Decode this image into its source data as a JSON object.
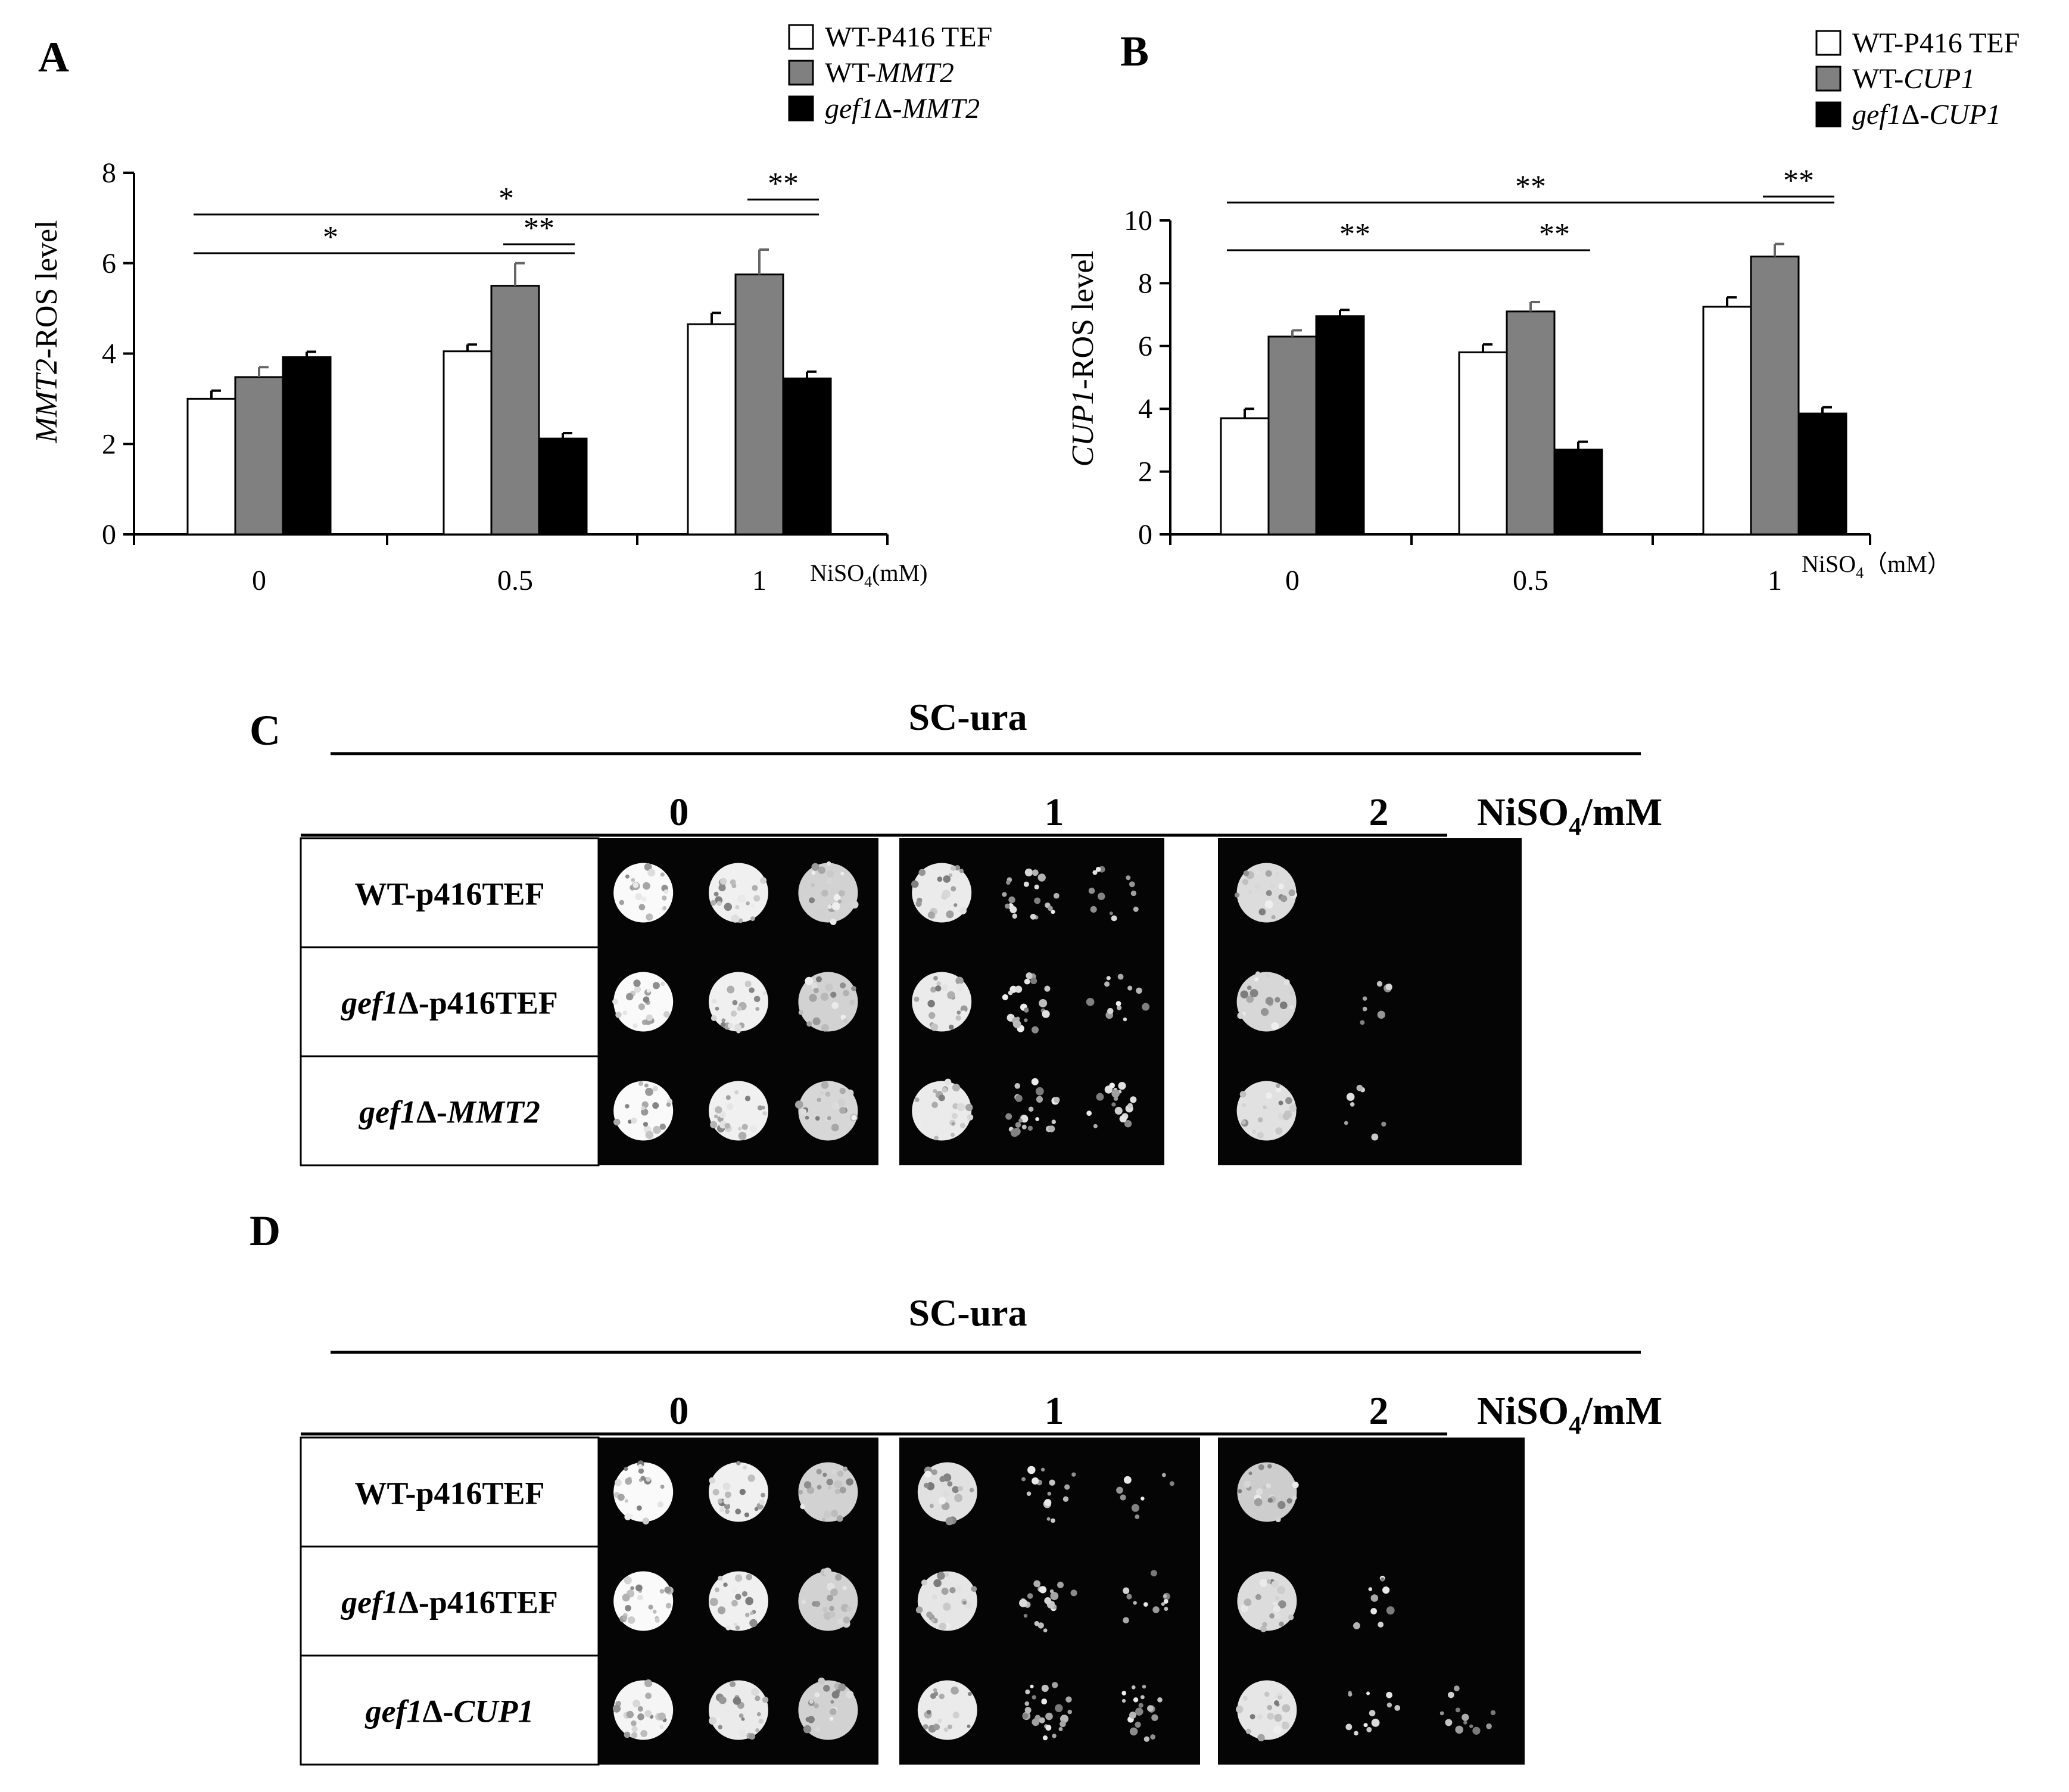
{
  "chart_data": [
    {
      "type": "bar",
      "panel": "A",
      "title": "",
      "ylabel": "MMT2-ROS level",
      "xlabel": "NiSO4(mM)",
      "categories": [
        "0",
        "0.5",
        "1"
      ],
      "ylim": [
        0,
        8
      ],
      "yticks": [
        0,
        2,
        4,
        6,
        8
      ],
      "legend_placement": "top-right",
      "grid": false,
      "series": [
        {
          "name": "WT-P416 TEF",
          "color": "#ffffff",
          "values": [
            3.0,
            4.05,
            4.65
          ],
          "errors": [
            0.18,
            0.15,
            0.25
          ]
        },
        {
          "name": "WT-MMT2",
          "color": "#808080",
          "values": [
            3.48,
            5.5,
            5.75
          ],
          "errors": [
            0.22,
            0.5,
            0.55
          ]
        },
        {
          "name": "gef1Δ-MMT2",
          "color": "#000000",
          "values": [
            3.92,
            2.12,
            3.45
          ],
          "errors": [
            0.12,
            0.12,
            0.15
          ]
        }
      ],
      "significance": [
        {
          "from": "0 / gef1Δ-MMT2",
          "to": "1 / gef1Δ-MMT2",
          "label": "*"
        },
        {
          "from": "0 / gef1Δ-MMT2",
          "to": "0.5 / gef1Δ-MMT2",
          "label": "*"
        },
        {
          "from": "0.5 / WT-MMT2",
          "to": "0.5 / gef1Δ-MMT2",
          "label": "**"
        },
        {
          "from": "1 / WT-MMT2",
          "to": "1 / gef1Δ-MMT2",
          "label": "**"
        }
      ]
    },
    {
      "type": "bar",
      "panel": "B",
      "title": "",
      "ylabel": "CUP1-ROS level",
      "xlabel": "NiSO4（mM）",
      "categories": [
        "0",
        "0.5",
        "1"
      ],
      "ylim": [
        0,
        10
      ],
      "yticks": [
        0,
        2,
        4,
        6,
        8,
        10
      ],
      "legend_placement": "top-right",
      "grid": false,
      "series": [
        {
          "name": "WT-P416 TEF",
          "color": "#ffffff",
          "values": [
            3.7,
            5.8,
            7.25
          ],
          "errors": [
            0.3,
            0.25,
            0.3
          ]
        },
        {
          "name": "WT-CUP1",
          "color": "#808080",
          "values": [
            6.3,
            7.1,
            8.85
          ],
          "errors": [
            0.2,
            0.3,
            0.4
          ]
        },
        {
          "name": "gef1Δ-CUP1",
          "color": "#000000",
          "values": [
            6.95,
            2.7,
            3.85
          ],
          "errors": [
            0.2,
            0.25,
            0.2
          ]
        }
      ],
      "significance": [
        {
          "from": "0 / gef1Δ-CUP1",
          "to": "1 / gef1Δ-CUP1",
          "label": "**"
        },
        {
          "from": "0 / gef1Δ-CUP1",
          "to": "0.5 / gef1Δ-CUP1",
          "label": "**"
        },
        {
          "from": "0.5 / WT-CUP1",
          "to": "0.5 / gef1Δ-CUP1",
          "label": "**"
        },
        {
          "from": "1 / WT-CUP1",
          "to": "1 / gef1Δ-CUP1",
          "label": "**"
        }
      ]
    }
  ],
  "spot_assays": [
    {
      "panel": "C",
      "medium": "SC-ura",
      "concentrations": [
        "0",
        "1",
        "2"
      ],
      "unit": "NiSO4/mM",
      "strains": [
        "WT-p416TEF",
        "gef1Δ-p416TEF",
        "gef1Δ-MMT2"
      ],
      "growth": [
        [
          1.0,
          0.9,
          0.6
        ],
        [
          0.85,
          0.25,
          0.1
        ],
        [
          0.7,
          0.0,
          0.0
        ]
      ],
      "growth_rows": [
        [
          [
            1.0,
            0.9,
            0.6
          ],
          [
            0.85,
            0.25,
            0.1
          ],
          [
            0.7,
            0.0,
            0.0
          ]
        ],
        [
          [
            1.0,
            0.9,
            0.6
          ],
          [
            0.85,
            0.25,
            0.1
          ],
          [
            0.65,
            0.02,
            0.0
          ]
        ],
        [
          [
            1.0,
            0.9,
            0.65
          ],
          [
            0.85,
            0.3,
            0.2
          ],
          [
            0.75,
            0.02,
            0.0
          ]
        ]
      ]
    },
    {
      "panel": "D",
      "medium": "SC-ura",
      "concentrations": [
        "0",
        "1",
        "2"
      ],
      "unit": "NiSO4/mM",
      "strains": [
        "WT-p416TEF",
        "gef1Δ-p416TEF",
        "gef1Δ-CUP1"
      ],
      "growth_rows": [
        [
          [
            1.0,
            0.9,
            0.6
          ],
          [
            0.75,
            0.15,
            0.05
          ],
          [
            0.55,
            0.0,
            0.0
          ]
        ],
        [
          [
            1.0,
            0.9,
            0.6
          ],
          [
            0.8,
            0.25,
            0.1
          ],
          [
            0.7,
            0.05,
            0.0
          ]
        ],
        [
          [
            0.95,
            0.85,
            0.6
          ],
          [
            0.85,
            0.3,
            0.2
          ],
          [
            0.8,
            0.1,
            0.1
          ]
        ]
      ]
    }
  ]
}
